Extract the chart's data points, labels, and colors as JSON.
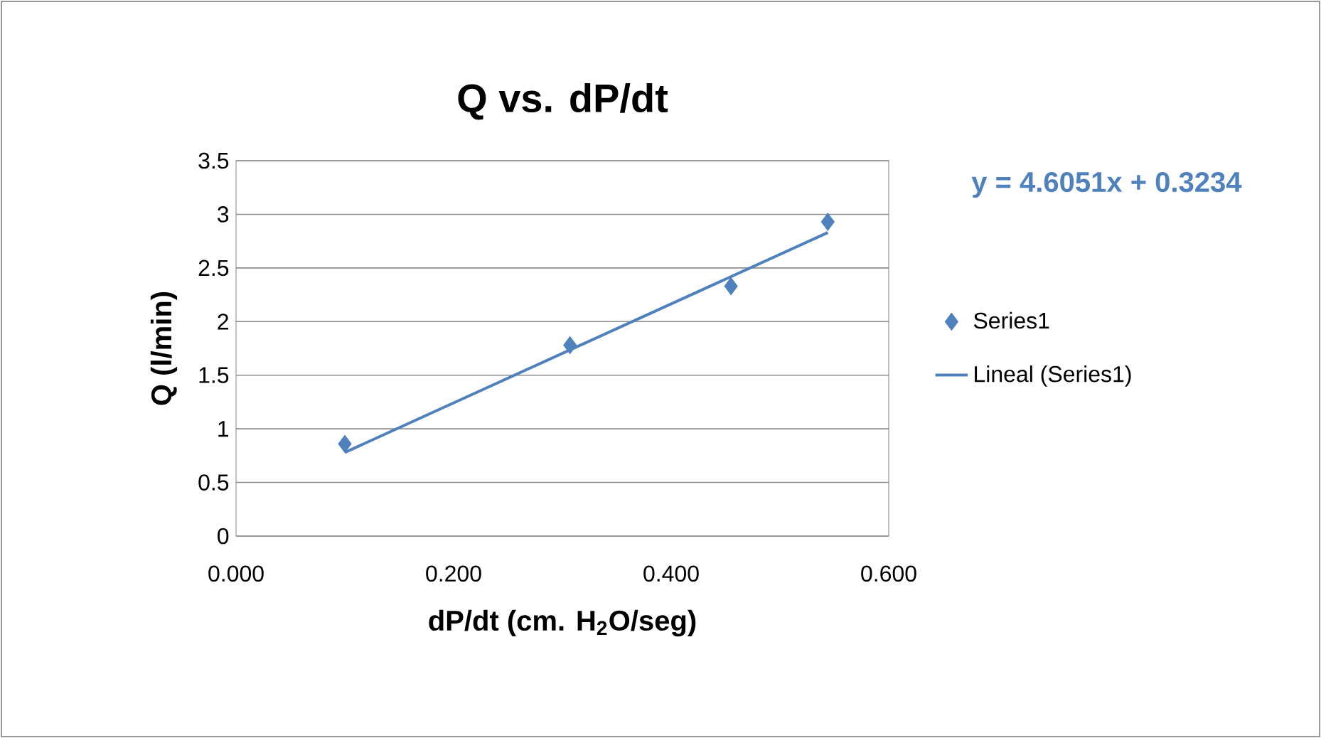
{
  "chart_data": {
    "type": "scatter",
    "title": "Q vs. dP/dt",
    "xlabel": "dP/dt (cm. H$_{2}$O/seg)",
    "ylabel": "Q (l/min)",
    "annotations": [
      "y = 4.6051x + 0.3234"
    ],
    "xlim": [
      0,
      0.6
    ],
    "ylim": [
      0,
      3.5
    ],
    "xticks": [
      {
        "value": 0,
        "label": "0.000"
      },
      {
        "value": 0.2,
        "label": "0.200"
      },
      {
        "value": 0.4,
        "label": "0.400"
      },
      {
        "value": 0.6,
        "label": "0.600"
      }
    ],
    "yticks": [
      0,
      0.5,
      1,
      1.5,
      2,
      2.5,
      3,
      3.5
    ],
    "grid": "y",
    "legend": "right",
    "series": [
      {
        "name": "Series1",
        "marker": "diamond",
        "color": "#4f81bd",
        "x": [
          0.1,
          0.307,
          0.455,
          0.544
        ],
        "values": [
          0.86,
          1.78,
          2.33,
          2.93
        ]
      },
      {
        "name": "Lineal (Series1)",
        "type": "line",
        "marker": "none",
        "color": "#4f81bd",
        "x": [
          0.1,
          0.544
        ],
        "values": [
          0.78,
          2.83
        ]
      }
    ]
  }
}
